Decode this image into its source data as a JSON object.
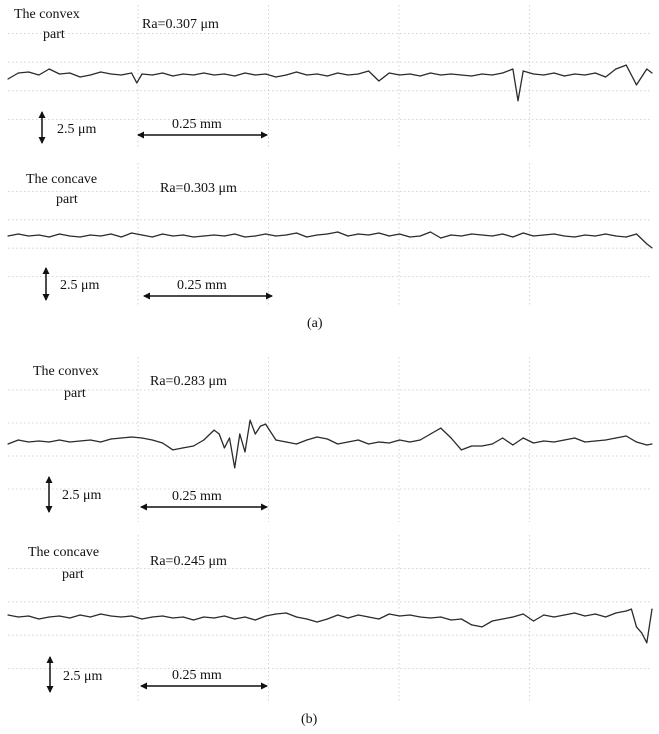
{
  "figure": {
    "captions": [
      "(a)",
      "(b)"
    ]
  },
  "panels": [
    {
      "group": "(a)",
      "part_label": [
        "The convex",
        "part"
      ],
      "ra_label": "Ra=0.307 μm",
      "vertical_scale": "2.5 μm",
      "horizontal_scale": "0.25 mm"
    },
    {
      "group": "(a)",
      "part_label": [
        "The concave",
        "part"
      ],
      "ra_label": "Ra=0.303 μm",
      "vertical_scale": "2.5 μm",
      "horizontal_scale": "0.25 mm"
    },
    {
      "group": "(b)",
      "part_label": [
        "The convex",
        "part"
      ],
      "ra_label": "Ra=0.283 μm",
      "vertical_scale": "2.5 μm",
      "horizontal_scale": "0.25 mm"
    },
    {
      "group": "(b)",
      "part_label": [
        "The concave",
        "part"
      ],
      "ra_label": "Ra=0.245 μm",
      "vertical_scale": "2.5 μm",
      "horizontal_scale": "0.25 mm"
    }
  ],
  "chart_data": [
    {
      "type": "line",
      "title": "",
      "xlabel": "",
      "ylabel": "",
      "x_unit": "mm",
      "y_unit": "μm",
      "xlim": [
        0,
        1.25
      ],
      "ylim": [
        -1.7,
        1.6
      ],
      "grid": true,
      "series": [
        {
          "x": [
            0,
            0.02,
            0.04,
            0.06,
            0.08,
            0.1,
            0.12,
            0.14,
            0.16,
            0.18,
            0.2,
            0.22,
            0.24,
            0.25,
            0.26,
            0.28,
            0.3,
            0.32,
            0.34,
            0.36,
            0.38,
            0.4,
            0.42,
            0.44,
            0.46,
            0.48,
            0.5,
            0.52,
            0.54,
            0.56,
            0.58,
            0.6,
            0.62,
            0.64,
            0.66,
            0.68,
            0.7,
            0.72,
            0.74,
            0.76,
            0.78,
            0.8,
            0.82,
            0.84,
            0.86,
            0.88,
            0.9,
            0.92,
            0.94,
            0.96,
            0.98,
            0.99,
            1.0,
            1.02,
            1.04,
            1.06,
            1.08,
            1.1,
            1.12,
            1.14,
            1.16,
            1.18,
            1.2,
            1.21,
            1.22,
            1.24,
            1.25
          ],
          "y": [
            -0.2,
            0.1,
            0.15,
            0.0,
            0.3,
            0.05,
            0.1,
            -0.1,
            0.0,
            0.15,
            0.05,
            0.0,
            0.1,
            -0.4,
            0.05,
            0.0,
            0.1,
            -0.05,
            0.05,
            0.0,
            0.1,
            0.0,
            0.05,
            -0.05,
            0.1,
            0.0,
            0.05,
            -0.1,
            0.0,
            0.15,
            0.0,
            0.05,
            -0.05,
            0.1,
            0.0,
            0.05,
            0.2,
            -0.3,
            0.1,
            0.0,
            0.05,
            -0.05,
            0.1,
            0.0,
            0.05,
            0.0,
            -0.05,
            0.05,
            0.0,
            0.1,
            0.3,
            -1.3,
            0.2,
            0.05,
            0.0,
            0.1,
            -0.05,
            0.05,
            0.0,
            0.1,
            -0.1,
            0.3,
            0.5,
            0.0,
            -0.5,
            0.3,
            0.1
          ]
        }
      ]
    },
    {
      "type": "line",
      "title": "",
      "xlabel": "",
      "ylabel": "",
      "x_unit": "mm",
      "y_unit": "μm",
      "xlim": [
        0,
        1.25
      ],
      "ylim": [
        -1.7,
        1.6
      ],
      "grid": true,
      "series": [
        {
          "x": [
            0,
            0.02,
            0.04,
            0.06,
            0.08,
            0.1,
            0.12,
            0.14,
            0.16,
            0.18,
            0.2,
            0.22,
            0.24,
            0.26,
            0.28,
            0.3,
            0.32,
            0.34,
            0.36,
            0.38,
            0.4,
            0.42,
            0.44,
            0.46,
            0.48,
            0.5,
            0.52,
            0.54,
            0.56,
            0.58,
            0.6,
            0.62,
            0.64,
            0.66,
            0.68,
            0.7,
            0.72,
            0.74,
            0.76,
            0.78,
            0.8,
            0.82,
            0.84,
            0.86,
            0.88,
            0.9,
            0.92,
            0.94,
            0.96,
            0.98,
            1.0,
            1.02,
            1.04,
            1.06,
            1.08,
            1.1,
            1.12,
            1.14,
            1.16,
            1.18,
            1.2,
            1.22,
            1.24,
            1.25
          ],
          "y": [
            0.0,
            0.1,
            0.0,
            0.05,
            -0.05,
            0.1,
            0.0,
            -0.05,
            0.05,
            0.0,
            0.1,
            -0.05,
            0.15,
            0.05,
            -0.05,
            0.1,
            0.0,
            0.05,
            -0.05,
            0.0,
            0.05,
            0.0,
            0.1,
            -0.05,
            0.0,
            0.1,
            0.0,
            0.05,
            0.15,
            -0.05,
            0.05,
            0.1,
            0.2,
            0.0,
            0.1,
            0.05,
            0.15,
            0.0,
            0.1,
            -0.05,
            0.0,
            0.2,
            -0.1,
            0.05,
            0.0,
            0.1,
            0.05,
            0.0,
            0.1,
            -0.05,
            0.15,
            0.0,
            0.05,
            0.1,
            0.0,
            -0.05,
            0.05,
            0.0,
            0.1,
            0.0,
            -0.05,
            0.1,
            -0.4,
            -0.6
          ]
        }
      ]
    },
    {
      "type": "line",
      "title": "",
      "xlabel": "",
      "ylabel": "",
      "x_unit": "mm",
      "y_unit": "μm",
      "xlim": [
        0,
        1.25
      ],
      "ylim": [
        -1.7,
        1.6
      ],
      "grid": true,
      "series": [
        {
          "x": [
            0,
            0.02,
            0.04,
            0.06,
            0.08,
            0.1,
            0.12,
            0.14,
            0.16,
            0.18,
            0.2,
            0.22,
            0.24,
            0.26,
            0.28,
            0.3,
            0.32,
            0.34,
            0.36,
            0.38,
            0.4,
            0.41,
            0.42,
            0.43,
            0.44,
            0.45,
            0.46,
            0.47,
            0.48,
            0.49,
            0.5,
            0.52,
            0.54,
            0.56,
            0.58,
            0.6,
            0.62,
            0.64,
            0.66,
            0.68,
            0.7,
            0.72,
            0.74,
            0.76,
            0.78,
            0.8,
            0.82,
            0.84,
            0.86,
            0.88,
            0.9,
            0.92,
            0.94,
            0.96,
            0.98,
            1.0,
            1.02,
            1.04,
            1.06,
            1.08,
            1.1,
            1.12,
            1.14,
            1.16,
            1.18,
            1.2,
            1.22,
            1.24,
            1.25
          ],
          "y": [
            -0.2,
            0.0,
            -0.1,
            -0.05,
            -0.1,
            0.0,
            -0.1,
            -0.05,
            0.0,
            -0.1,
            0.05,
            0.1,
            0.15,
            0.1,
            0.0,
            -0.15,
            -0.5,
            -0.4,
            -0.3,
            0.0,
            0.5,
            0.3,
            -0.4,
            0.1,
            -1.4,
            0.3,
            -0.6,
            1.0,
            0.3,
            0.7,
            0.8,
            0.0,
            -0.1,
            -0.2,
            0.0,
            0.15,
            0.05,
            -0.2,
            -0.1,
            0.0,
            -0.2,
            -0.1,
            -0.15,
            0.0,
            -0.1,
            0.0,
            0.3,
            0.6,
            0.1,
            -0.5,
            -0.3,
            -0.3,
            -0.2,
            0.1,
            -0.25,
            0.1,
            -0.15,
            -0.05,
            -0.1,
            0.0,
            0.1,
            -0.1,
            -0.05,
            0.0,
            0.1,
            0.2,
            -0.1,
            -0.25,
            -0.2
          ]
        }
      ]
    },
    {
      "type": "line",
      "title": "",
      "xlabel": "",
      "ylabel": "",
      "x_unit": "mm",
      "y_unit": "μm",
      "xlim": [
        0,
        1.25
      ],
      "ylim": [
        -1.7,
        1.6
      ],
      "grid": true,
      "series": [
        {
          "x": [
            0,
            0.02,
            0.04,
            0.06,
            0.08,
            0.1,
            0.12,
            0.14,
            0.16,
            0.18,
            0.2,
            0.22,
            0.24,
            0.26,
            0.28,
            0.3,
            0.32,
            0.34,
            0.36,
            0.38,
            0.4,
            0.42,
            0.44,
            0.46,
            0.48,
            0.5,
            0.52,
            0.54,
            0.56,
            0.58,
            0.6,
            0.62,
            0.64,
            0.66,
            0.68,
            0.7,
            0.72,
            0.74,
            0.76,
            0.78,
            0.8,
            0.82,
            0.84,
            0.86,
            0.88,
            0.9,
            0.92,
            0.94,
            0.96,
            0.98,
            1.0,
            1.02,
            1.04,
            1.06,
            1.08,
            1.1,
            1.12,
            1.14,
            1.16,
            1.18,
            1.2,
            1.21,
            1.22,
            1.23,
            1.24,
            1.25
          ],
          "y": [
            0.1,
            0.0,
            0.05,
            -0.1,
            0.0,
            0.05,
            -0.05,
            0.1,
            0.0,
            0.15,
            0.05,
            0.0,
            0.05,
            -0.1,
            0.0,
            0.05,
            -0.05,
            0.0,
            -0.15,
            0.0,
            -0.05,
            0.05,
            -0.1,
            0.0,
            -0.15,
            0.05,
            0.15,
            0.2,
            0.0,
            -0.1,
            -0.25,
            -0.1,
            0.1,
            -0.05,
            0.1,
            0.0,
            -0.1,
            0.15,
            0.05,
            0.1,
            0.0,
            -0.05,
            0.0,
            -0.15,
            -0.1,
            -0.4,
            -0.5,
            -0.2,
            -0.1,
            0.0,
            0.15,
            -0.2,
            0.1,
            0.0,
            0.1,
            0.2,
            0.05,
            0.15,
            0.0,
            0.2,
            0.3,
            0.4,
            -0.5,
            -0.8,
            -1.3,
            0.4
          ]
        }
      ]
    }
  ]
}
